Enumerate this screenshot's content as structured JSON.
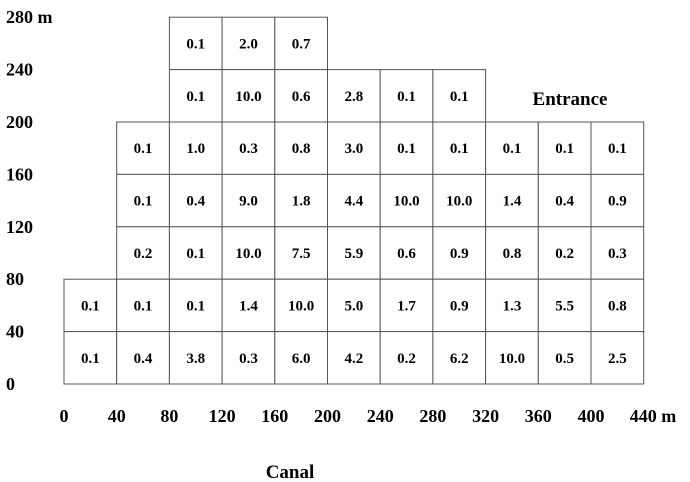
{
  "y_axis": {
    "ticks": [
      "280 m",
      "240",
      "200",
      "160",
      "120",
      "80",
      "40",
      "0"
    ],
    "values": [
      280,
      240,
      200,
      160,
      120,
      80,
      40,
      0
    ]
  },
  "x_axis": {
    "ticks": [
      "0",
      "40",
      "80",
      "120",
      "160",
      "200",
      "240",
      "280",
      "320",
      "360",
      "400",
      "440 m"
    ],
    "values": [
      0,
      40,
      80,
      120,
      160,
      200,
      240,
      280,
      320,
      360,
      400,
      440
    ]
  },
  "labels": {
    "entrance": "Entrance",
    "canal": "Canal"
  },
  "cells": [
    {
      "x0": 80,
      "y0": 240,
      "value": "0.1"
    },
    {
      "x0": 120,
      "y0": 240,
      "value": "2.0"
    },
    {
      "x0": 160,
      "y0": 240,
      "value": "0.7"
    },
    {
      "x0": 80,
      "y0": 200,
      "value": "0.1"
    },
    {
      "x0": 120,
      "y0": 200,
      "value": "10.0"
    },
    {
      "x0": 160,
      "y0": 200,
      "value": "0.6"
    },
    {
      "x0": 200,
      "y0": 200,
      "value": "2.8"
    },
    {
      "x0": 240,
      "y0": 200,
      "value": "0.1"
    },
    {
      "x0": 280,
      "y0": 200,
      "value": "0.1"
    },
    {
      "x0": 40,
      "y0": 160,
      "value": "0.1"
    },
    {
      "x0": 80,
      "y0": 160,
      "value": "1.0"
    },
    {
      "x0": 120,
      "y0": 160,
      "value": "0.3"
    },
    {
      "x0": 160,
      "y0": 160,
      "value": "0.8"
    },
    {
      "x0": 200,
      "y0": 160,
      "value": "3.0"
    },
    {
      "x0": 240,
      "y0": 160,
      "value": "0.1"
    },
    {
      "x0": 280,
      "y0": 160,
      "value": "0.1"
    },
    {
      "x0": 320,
      "y0": 160,
      "value": "0.1"
    },
    {
      "x0": 360,
      "y0": 160,
      "value": "0.1"
    },
    {
      "x0": 400,
      "y0": 160,
      "value": "0.1"
    },
    {
      "x0": 40,
      "y0": 120,
      "value": "0.1"
    },
    {
      "x0": 80,
      "y0": 120,
      "value": "0.4"
    },
    {
      "x0": 120,
      "y0": 120,
      "value": "9.0"
    },
    {
      "x0": 160,
      "y0": 120,
      "value": "1.8"
    },
    {
      "x0": 200,
      "y0": 120,
      "value": "4.4"
    },
    {
      "x0": 240,
      "y0": 120,
      "value": "10.0"
    },
    {
      "x0": 280,
      "y0": 120,
      "value": "10.0"
    },
    {
      "x0": 320,
      "y0": 120,
      "value": "1.4"
    },
    {
      "x0": 360,
      "y0": 120,
      "value": "0.4"
    },
    {
      "x0": 400,
      "y0": 120,
      "value": "0.9"
    },
    {
      "x0": 40,
      "y0": 80,
      "value": "0.2"
    },
    {
      "x0": 80,
      "y0": 80,
      "value": "0.1"
    },
    {
      "x0": 120,
      "y0": 80,
      "value": "10.0"
    },
    {
      "x0": 160,
      "y0": 80,
      "value": "7.5"
    },
    {
      "x0": 200,
      "y0": 80,
      "value": "5.9"
    },
    {
      "x0": 240,
      "y0": 80,
      "value": "0.6"
    },
    {
      "x0": 280,
      "y0": 80,
      "value": "0.9"
    },
    {
      "x0": 320,
      "y0": 80,
      "value": "0.8"
    },
    {
      "x0": 360,
      "y0": 80,
      "value": "0.2"
    },
    {
      "x0": 400,
      "y0": 80,
      "value": "0.3"
    },
    {
      "x0": 0,
      "y0": 40,
      "value": "0.1"
    },
    {
      "x0": 40,
      "y0": 40,
      "value": "0.1"
    },
    {
      "x0": 80,
      "y0": 40,
      "value": "0.1"
    },
    {
      "x0": 120,
      "y0": 40,
      "value": "1.4"
    },
    {
      "x0": 160,
      "y0": 40,
      "value": "10.0"
    },
    {
      "x0": 200,
      "y0": 40,
      "value": "5.0"
    },
    {
      "x0": 240,
      "y0": 40,
      "value": "1.7"
    },
    {
      "x0": 280,
      "y0": 40,
      "value": "0.9"
    },
    {
      "x0": 320,
      "y0": 40,
      "value": "1.3"
    },
    {
      "x0": 360,
      "y0": 40,
      "value": "5.5"
    },
    {
      "x0": 400,
      "y0": 40,
      "value": "0.8"
    },
    {
      "x0": 0,
      "y0": 0,
      "value": "0.1"
    },
    {
      "x0": 40,
      "y0": 0,
      "value": "0.4"
    },
    {
      "x0": 80,
      "y0": 0,
      "value": "3.8"
    },
    {
      "x0": 120,
      "y0": 0,
      "value": "0.3"
    },
    {
      "x0": 160,
      "y0": 0,
      "value": "6.0"
    },
    {
      "x0": 200,
      "y0": 0,
      "value": "4.2"
    },
    {
      "x0": 240,
      "y0": 0,
      "value": "0.2"
    },
    {
      "x0": 280,
      "y0": 0,
      "value": "6.2"
    },
    {
      "x0": 320,
      "y0": 0,
      "value": "10.0"
    },
    {
      "x0": 360,
      "y0": 0,
      "value": "0.5"
    },
    {
      "x0": 400,
      "y0": 0,
      "value": "2.5"
    }
  ]
}
